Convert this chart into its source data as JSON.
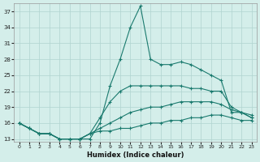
{
  "xlabel": "Humidex (Indice chaleur)",
  "bg_color": "#d4eeea",
  "grid_color": "#b0d4d0",
  "line_color": "#1a7a6e",
  "xlim": [
    -0.5,
    23.5
  ],
  "ylim": [
    12.5,
    38.5
  ],
  "yticks": [
    13,
    16,
    19,
    22,
    25,
    28,
    31,
    34,
    37
  ],
  "xticks": [
    0,
    1,
    2,
    3,
    4,
    5,
    6,
    7,
    8,
    9,
    10,
    11,
    12,
    13,
    14,
    15,
    16,
    17,
    18,
    19,
    20,
    21,
    22,
    23
  ],
  "series": [
    {
      "x": [
        0,
        1,
        2,
        3,
        4,
        5,
        6,
        7,
        8,
        9,
        10,
        11,
        12,
        13,
        14,
        15,
        16,
        17,
        18,
        19,
        20,
        21,
        22,
        23
      ],
      "y": [
        16,
        15,
        14,
        14,
        13,
        13,
        13,
        13,
        16,
        23,
        28,
        34,
        38,
        28,
        27,
        27,
        27.5,
        27,
        26,
        25,
        24,
        18,
        18,
        17
      ]
    },
    {
      "x": [
        0,
        1,
        2,
        3,
        4,
        5,
        6,
        7,
        8,
        9,
        10,
        11,
        12,
        13,
        14,
        15,
        16,
        17,
        18,
        19,
        20,
        21,
        22,
        23
      ],
      "y": [
        16,
        15,
        14,
        14,
        13,
        13,
        13,
        14,
        17,
        20,
        22,
        23,
        23,
        23,
        23,
        23,
        23,
        22.5,
        22.5,
        22,
        22,
        19,
        18,
        17
      ]
    },
    {
      "x": [
        0,
        1,
        2,
        3,
        4,
        5,
        6,
        7,
        8,
        9,
        10,
        11,
        12,
        13,
        14,
        15,
        16,
        17,
        18,
        19,
        20,
        21,
        22,
        23
      ],
      "y": [
        16,
        15,
        14,
        14,
        13,
        13,
        13,
        14,
        15,
        16,
        17,
        18,
        18.5,
        19,
        19,
        19.5,
        20,
        20,
        20,
        20,
        19.5,
        18.5,
        18,
        17.5
      ]
    },
    {
      "x": [
        0,
        1,
        2,
        3,
        4,
        5,
        6,
        7,
        8,
        9,
        10,
        11,
        12,
        13,
        14,
        15,
        16,
        17,
        18,
        19,
        20,
        21,
        22,
        23
      ],
      "y": [
        16,
        15,
        14,
        14,
        13,
        13,
        13,
        14,
        14.5,
        14.5,
        15,
        15,
        15.5,
        16,
        16,
        16.5,
        16.5,
        17,
        17,
        17.5,
        17.5,
        17,
        16.5,
        16.5
      ]
    }
  ]
}
